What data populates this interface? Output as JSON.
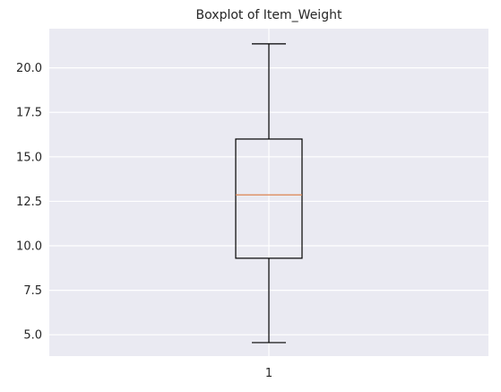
{
  "chart_data": {
    "type": "boxplot",
    "title": "Boxplot of Item_Weight",
    "xlabel": "",
    "ylabel": "",
    "x_categories": [
      "1"
    ],
    "ylim": [
      3.8,
      22.2
    ],
    "y_ticks": [
      5.0,
      7.5,
      10.0,
      12.5,
      15.0,
      17.5,
      20.0
    ],
    "y_tick_labels": [
      "5.0",
      "7.5",
      "10.0",
      "12.5",
      "15.0",
      "17.5",
      "20.0"
    ],
    "grid": true,
    "boxes": [
      {
        "category": "1",
        "whisker_low": 4.56,
        "q1": 9.3,
        "median": 12.86,
        "q3": 16.0,
        "whisker_high": 21.35
      }
    ],
    "colors": {
      "plot_background": "#EAEAF2",
      "grid": "#FFFFFF",
      "box": "#000000",
      "median": "#DD8452",
      "text": "#262626"
    }
  }
}
